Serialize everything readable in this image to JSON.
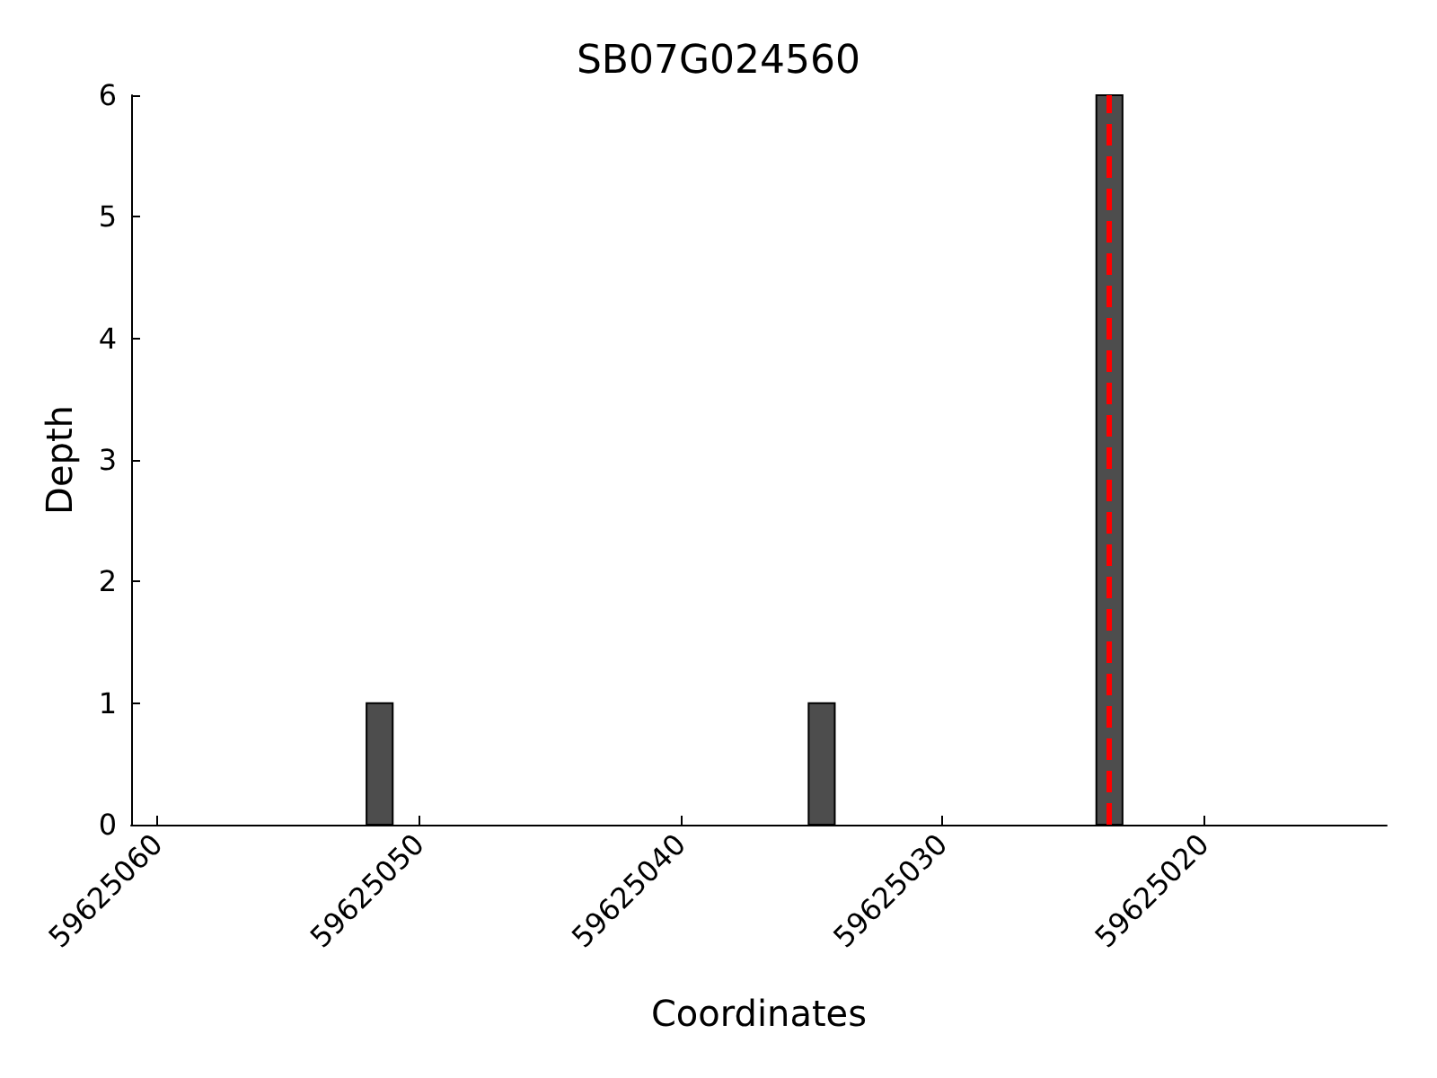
{
  "chart_data": {
    "type": "bar",
    "title": "SB07G024560",
    "xlabel": "Coordinates",
    "ylabel": "Depth",
    "x": [
      59625051.5,
      59625034.6,
      59625023.6
    ],
    "series": [
      {
        "color": "#4d4d4d",
        "values": [
          1,
          1,
          6
        ]
      }
    ],
    "xlim": [
      59625061,
      59625013
    ],
    "xticks": [
      59625060,
      59625050,
      59625040,
      59625030,
      59625020
    ],
    "ylim": [
      0,
      6
    ],
    "yticks": [
      0,
      1,
      2,
      3,
      4,
      5,
      6
    ],
    "ref_lines": [
      {
        "axis": "x",
        "value": 59625023.6,
        "color": "#ff0000",
        "line_style": "dashed"
      }
    ],
    "grid": false
  }
}
